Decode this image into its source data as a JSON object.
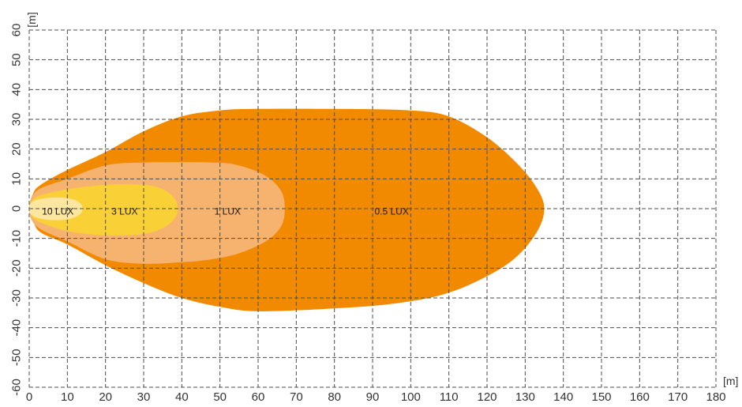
{
  "chart_data": {
    "type": "area",
    "title": "",
    "xlabel": "[m]",
    "ylabel": "[m]",
    "xlim": [
      0,
      180
    ],
    "ylim": [
      -60,
      60
    ],
    "x_ticks": [
      0,
      10,
      20,
      30,
      40,
      50,
      60,
      70,
      80,
      90,
      100,
      110,
      120,
      130,
      140,
      150,
      160,
      170,
      180
    ],
    "y_ticks": [
      -60,
      -50,
      -40,
      -30,
      -20,
      -10,
      0,
      10,
      20,
      30,
      40,
      50,
      60
    ],
    "grid": true,
    "series": [
      {
        "name": "0.5 LUX",
        "color": "#F28A00",
        "label_at": [
          95,
          -2
        ],
        "outline": [
          [
            0,
            0
          ],
          [
            1,
            5
          ],
          [
            3,
            8
          ],
          [
            10,
            13
          ],
          [
            20,
            19
          ],
          [
            30,
            26
          ],
          [
            40,
            31
          ],
          [
            50,
            33
          ],
          [
            60,
            33.5
          ],
          [
            80,
            33.5
          ],
          [
            100,
            33
          ],
          [
            110,
            31
          ],
          [
            120,
            24
          ],
          [
            128,
            15
          ],
          [
            133,
            7
          ],
          [
            135,
            0
          ],
          [
            133,
            -8
          ],
          [
            127,
            -17
          ],
          [
            118,
            -24
          ],
          [
            108,
            -29
          ],
          [
            95,
            -32
          ],
          [
            80,
            -33.5
          ],
          [
            60,
            -34.5
          ],
          [
            50,
            -33
          ],
          [
            40,
            -30
          ],
          [
            30,
            -25
          ],
          [
            20,
            -19
          ],
          [
            10,
            -12
          ],
          [
            3,
            -8
          ],
          [
            1,
            -4
          ]
        ]
      },
      {
        "name": "1 LUX",
        "color": "#F6B26F",
        "label_at": [
          52,
          -2
        ],
        "outline": [
          [
            0,
            0
          ],
          [
            2,
            6
          ],
          [
            10,
            10
          ],
          [
            20,
            14.5
          ],
          [
            30,
            15.5
          ],
          [
            48,
            15.5
          ],
          [
            55,
            14.5
          ],
          [
            62,
            11
          ],
          [
            66,
            6
          ],
          [
            67,
            0
          ],
          [
            66,
            -6
          ],
          [
            62,
            -11
          ],
          [
            55,
            -15
          ],
          [
            48,
            -17
          ],
          [
            40,
            -18
          ],
          [
            30,
            -18.5
          ],
          [
            20,
            -17
          ],
          [
            10,
            -11
          ],
          [
            2,
            -6
          ]
        ]
      },
      {
        "name": "3 LUX",
        "color": "#FAD037",
        "label_at": [
          25,
          -2
        ],
        "outline": [
          [
            0,
            0
          ],
          [
            2,
            4
          ],
          [
            10,
            6.5
          ],
          [
            20,
            8
          ],
          [
            30,
            8
          ],
          [
            35,
            6.5
          ],
          [
            38,
            3.5
          ],
          [
            39,
            0
          ],
          [
            38,
            -3.5
          ],
          [
            35,
            -6.5
          ],
          [
            30,
            -8.5
          ],
          [
            20,
            -9
          ],
          [
            10,
            -7.5
          ],
          [
            2,
            -4
          ]
        ]
      },
      {
        "name": "10 LUX",
        "color": "#FCE6A0",
        "label_at": [
          7.5,
          -2
        ],
        "outline": [
          [
            0,
            0
          ],
          [
            1,
            2.5
          ],
          [
            5,
            3.6
          ],
          [
            10,
            3.5
          ],
          [
            13,
            2.2
          ],
          [
            14,
            0
          ],
          [
            13,
            -2.2
          ],
          [
            10,
            -3.6
          ],
          [
            5,
            -3.8
          ],
          [
            1,
            -2.5
          ]
        ]
      }
    ]
  }
}
